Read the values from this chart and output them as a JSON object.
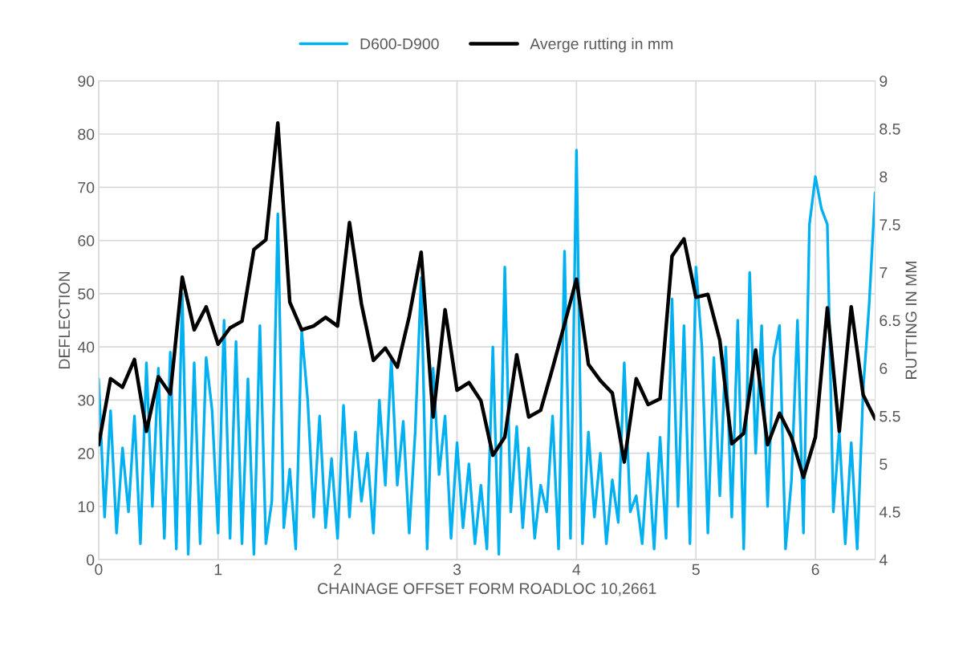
{
  "chart_data": {
    "type": "line",
    "xlabel": "CHAINAGE OFFSET FORM ROADLOC 10,2661",
    "ylabel": "DEFLECTION",
    "y2label": "RUTTING IN MM",
    "xlim": [
      0,
      6.5
    ],
    "xticks": [
      0,
      1,
      2,
      3,
      4,
      5,
      6
    ],
    "ylim": [
      0,
      90
    ],
    "yticks": [
      0,
      10,
      20,
      30,
      40,
      50,
      60,
      70,
      80,
      90
    ],
    "y2lim": [
      4,
      9
    ],
    "y2ticks": [
      4,
      4.5,
      5,
      5.5,
      6,
      6.5,
      7,
      7.5,
      8,
      8.5,
      9
    ],
    "grid": true,
    "legend": "top",
    "marker": "none",
    "line_style": "solid",
    "series": [
      {
        "name": "D600-D900",
        "color": "#00b0f0",
        "x": [
          0,
          0.05,
          0.1,
          0.15,
          0.2,
          0.25,
          0.3,
          0.35,
          0.4,
          0.45,
          0.5,
          0.55,
          0.6,
          0.65,
          0.7,
          0.75,
          0.8,
          0.85,
          0.9,
          0.95,
          1,
          1.05,
          1.1,
          1.15,
          1.2,
          1.25,
          1.3,
          1.35,
          1.4,
          1.45,
          1.5,
          1.55,
          1.6,
          1.65,
          1.7,
          1.75,
          1.8,
          1.85,
          1.9,
          1.95,
          2,
          2.05,
          2.1,
          2.15,
          2.2,
          2.25,
          2.3,
          2.35,
          2.4,
          2.45,
          2.5,
          2.55,
          2.6,
          2.65,
          2.7,
          2.75,
          2.8,
          2.85,
          2.9,
          2.95,
          3,
          3.05,
          3.1,
          3.15,
          3.2,
          3.25,
          3.3,
          3.35,
          3.4,
          3.45,
          3.5,
          3.55,
          3.6,
          3.65,
          3.7,
          3.75,
          3.8,
          3.85,
          3.9,
          3.95,
          4,
          4.05,
          4.1,
          4.15,
          4.2,
          4.25,
          4.3,
          4.35,
          4.4,
          4.45,
          4.5,
          4.55,
          4.6,
          4.65,
          4.7,
          4.75,
          4.8,
          4.85,
          4.9,
          4.95,
          5,
          5.05,
          5.1,
          5.15,
          5.2,
          5.25,
          5.3,
          5.35,
          5.4,
          5.45,
          5.5,
          5.55,
          5.6,
          5.65,
          5.7,
          5.75,
          5.8,
          5.85,
          5.9,
          5.95,
          6,
          6.05,
          6.1,
          6.15,
          6.2,
          6.25,
          6.3,
          6.35,
          6.4,
          6.45,
          6.5
        ],
        "values": [
          34,
          8,
          28,
          5,
          21,
          9,
          27,
          3,
          37,
          10,
          36,
          4,
          39,
          2,
          50,
          1,
          37,
          3,
          38,
          28,
          5,
          45,
          4,
          41,
          3,
          34,
          1,
          44,
          3,
          11,
          65,
          6,
          17,
          2,
          43,
          30,
          8,
          27,
          6,
          19,
          4,
          29,
          8,
          24,
          11,
          20,
          5,
          30,
          14,
          38,
          14,
          26,
          5,
          24,
          53,
          2,
          36,
          16,
          27,
          4,
          22,
          6,
          18,
          3,
          14,
          2,
          40,
          1,
          55,
          9,
          25,
          6,
          21,
          4,
          14,
          9,
          27,
          2,
          58,
          4,
          77,
          3,
          24,
          8,
          20,
          3,
          15,
          7,
          37,
          9,
          12,
          3,
          20,
          2,
          23,
          4,
          49,
          10,
          44,
          3,
          55,
          40,
          5,
          38,
          12,
          40,
          8,
          45,
          2,
          54,
          20,
          44,
          10,
          38,
          44,
          2,
          15,
          45,
          5,
          63,
          72,
          66,
          63,
          9,
          24,
          3,
          22,
          2,
          32,
          48,
          69
        ]
      },
      {
        "name": "Averge rutting in mm",
        "color": "#000000",
        "axis": "y2",
        "x": [
          0,
          0.1,
          0.2,
          0.3,
          0.4,
          0.5,
          0.6,
          0.7,
          0.8,
          0.9,
          1,
          1.1,
          1.2,
          1.3,
          1.4,
          1.5,
          1.6,
          1.7,
          1.8,
          1.9,
          2,
          2.1,
          2.2,
          2.3,
          2.4,
          2.5,
          2.6,
          2.7,
          2.8,
          2.9,
          3,
          3.1,
          3.2,
          3.3,
          3.4,
          3.5,
          3.6,
          3.7,
          3.8,
          3.9,
          4,
          4.1,
          4.2,
          4.3,
          4.4,
          4.5,
          4.6,
          4.7,
          4.8,
          4.9,
          5,
          5.1,
          5.2,
          5.3,
          5.4,
          5.5,
          5.6,
          5.7,
          5.8,
          5.9,
          6,
          6.1,
          6.2,
          6.3,
          6.4,
          6.5
        ],
        "values": [
          5.2,
          5.89,
          5.8,
          6.09,
          5.34,
          5.91,
          5.73,
          6.95,
          6.4,
          6.64,
          6.25,
          6.42,
          6.49,
          7.24,
          7.34,
          8.56,
          6.69,
          6.4,
          6.44,
          6.53,
          6.44,
          7.52,
          6.67,
          6.08,
          6.21,
          6.01,
          6.54,
          7.21,
          5.49,
          6.61,
          5.77,
          5.85,
          5.66,
          5.09,
          5.28,
          6.14,
          5.49,
          5.56,
          6.0,
          6.46,
          6.93,
          6.04,
          5.87,
          5.74,
          5.02,
          5.89,
          5.62,
          5.68,
          7.17,
          7.35,
          6.74,
          6.77,
          6.29,
          5.21,
          5.32,
          6.19,
          5.2,
          5.53,
          5.28,
          4.86,
          5.28,
          6.63,
          5.34,
          6.64,
          5.72,
          5.47
        ]
      }
    ]
  }
}
